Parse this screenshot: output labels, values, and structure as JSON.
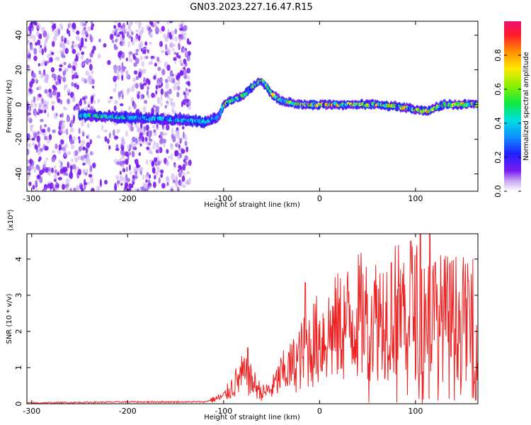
{
  "figure": {
    "title": "GN03.2023.227.16.47.R15"
  },
  "chart_data": [
    {
      "type": "heatmap",
      "xlabel": "Height of straight line (km)",
      "ylabel": "Frequency (Hz)",
      "xlim": [
        -305,
        165
      ],
      "ylim": [
        -50,
        48
      ],
      "xticks": [
        -300,
        -200,
        -100,
        0,
        100
      ],
      "yticks": [
        -40,
        -20,
        0,
        20,
        40
      ],
      "colorbar": {
        "label": "Normalized spectral amplitude",
        "range": [
          0.0,
          1.0
        ],
        "ticks": [
          0.0,
          0.2,
          0.4,
          0.6,
          0.8
        ]
      },
      "ridge": {
        "description_points_x": [
          -250,
          -220,
          -180,
          -140,
          -120,
          -105,
          -100,
          -90,
          -80,
          -70,
          -60,
          -50,
          -40,
          -30,
          -20,
          0,
          20,
          40,
          60,
          80,
          100,
          110,
          130,
          160
        ],
        "frequency_y": [
          -6,
          -7,
          -8,
          -9,
          -10,
          -7,
          0,
          3,
          5,
          10,
          14,
          6,
          2,
          1,
          0,
          0,
          0,
          0,
          0,
          -1,
          -3,
          -4,
          0,
          0
        ]
      },
      "noise_band_x": [
        -305,
        -135
      ],
      "grid": false,
      "legend": "colorbar-right"
    },
    {
      "type": "line",
      "xlabel": "Height of straight line (km)",
      "ylabel": "SNR (10 * v/v)",
      "y_scale_label": "(x10⁴)",
      "xlim": [
        -305,
        165
      ],
      "ylim": [
        0,
        4.7
      ],
      "xticks": [
        -300,
        -200,
        -100,
        0,
        100
      ],
      "yticks": [
        0,
        1,
        2,
        3,
        4
      ],
      "color": "#ee2222",
      "envelope": {
        "x": [
          -305,
          -200,
          -120,
          -100,
          -90,
          -80,
          -70,
          -60,
          -50,
          -40,
          -30,
          -20,
          -10,
          0,
          20,
          40,
          60,
          80,
          100,
          110,
          120,
          140,
          160,
          165
        ],
        "y": [
          0.02,
          0.05,
          0.05,
          0.2,
          0.5,
          0.8,
          0.6,
          0.3,
          0.4,
          0.8,
          1.0,
          1.3,
          1.6,
          1.8,
          2.1,
          2.4,
          2.4,
          2.6,
          2.6,
          2.5,
          2.4,
          2.4,
          2.3,
          2.3
        ]
      },
      "peaks": [
        {
          "x": -75,
          "y": 1.55
        },
        {
          "x": -15,
          "y": 3.35
        },
        {
          "x": 75,
          "y": 3.9
        },
        {
          "x": 95,
          "y": 4.5
        },
        {
          "x": 105,
          "y": 4.7
        },
        {
          "x": 115,
          "y": 4.7
        },
        {
          "x": 155,
          "y": 3.4
        }
      ],
      "grid": false
    }
  ]
}
